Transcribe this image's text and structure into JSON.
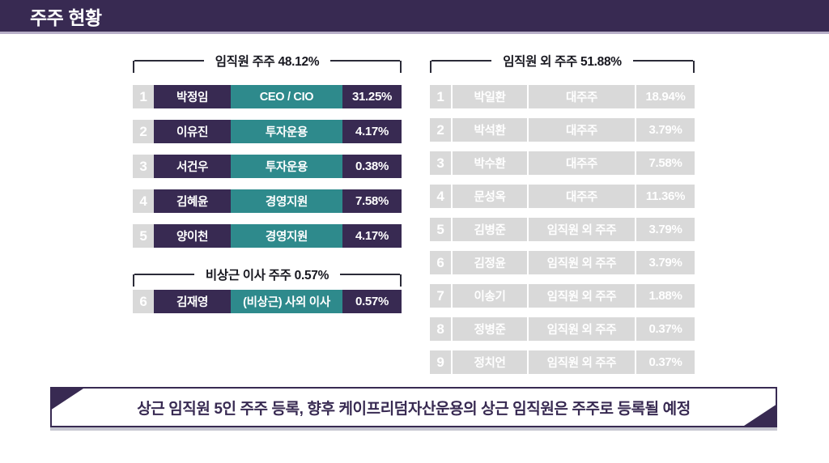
{
  "title": "주주 현황",
  "colors": {
    "purple": "#382a52",
    "teal": "#2e8a8c",
    "gray_row": "#d9d9d9"
  },
  "left_column": {
    "sections": [
      {
        "header": "임직원 주주 48.12%",
        "rows": [
          {
            "no": "1",
            "name": "박정임",
            "role": "CEO / CIO",
            "pct": "31.25%"
          },
          {
            "no": "2",
            "name": "이유진",
            "role": "투자운용",
            "pct": "4.17%"
          },
          {
            "no": "3",
            "name": "서건우",
            "role": "투자운용",
            "pct": "0.38%"
          },
          {
            "no": "4",
            "name": "김혜윤",
            "role": "경영지원",
            "pct": "7.58%"
          },
          {
            "no": "5",
            "name": "양이천",
            "role": "경영지원",
            "pct": "4.17%"
          }
        ]
      },
      {
        "header": "비상근 이사 주주 0.57%",
        "rows": [
          {
            "no": "6",
            "name": "김재영",
            "role": "(비상근) 사외 이사",
            "pct": "0.57%"
          }
        ]
      }
    ]
  },
  "right_column": {
    "header": "임직원 외 주주 51.88%",
    "rows": [
      {
        "no": "1",
        "name": "박일환",
        "role": "대주주",
        "pct": "18.94%"
      },
      {
        "no": "2",
        "name": "박석환",
        "role": "대주주",
        "pct": "3.79%"
      },
      {
        "no": "3",
        "name": "박수환",
        "role": "대주주",
        "pct": "7.58%"
      },
      {
        "no": "4",
        "name": "문성옥",
        "role": "대주주",
        "pct": "11.36%"
      },
      {
        "no": "5",
        "name": "김병준",
        "role": "임직원 외 주주",
        "pct": "3.79%"
      },
      {
        "no": "6",
        "name": "김정윤",
        "role": "임직원 외 주주",
        "pct": "3.79%"
      },
      {
        "no": "7",
        "name": "이송기",
        "role": "임직원 외 주주",
        "pct": "1.88%"
      },
      {
        "no": "8",
        "name": "정병준",
        "role": "임직원 외 주주",
        "pct": "0.37%"
      },
      {
        "no": "9",
        "name": "정치언",
        "role": "임직원 외 주주",
        "pct": "0.37%"
      }
    ]
  },
  "footer": {
    "note": "상근 임직원 5인 주주 등록, 향후 케이프리덤자산운용의 상근 임직원은 주주로 등록될 예정"
  }
}
